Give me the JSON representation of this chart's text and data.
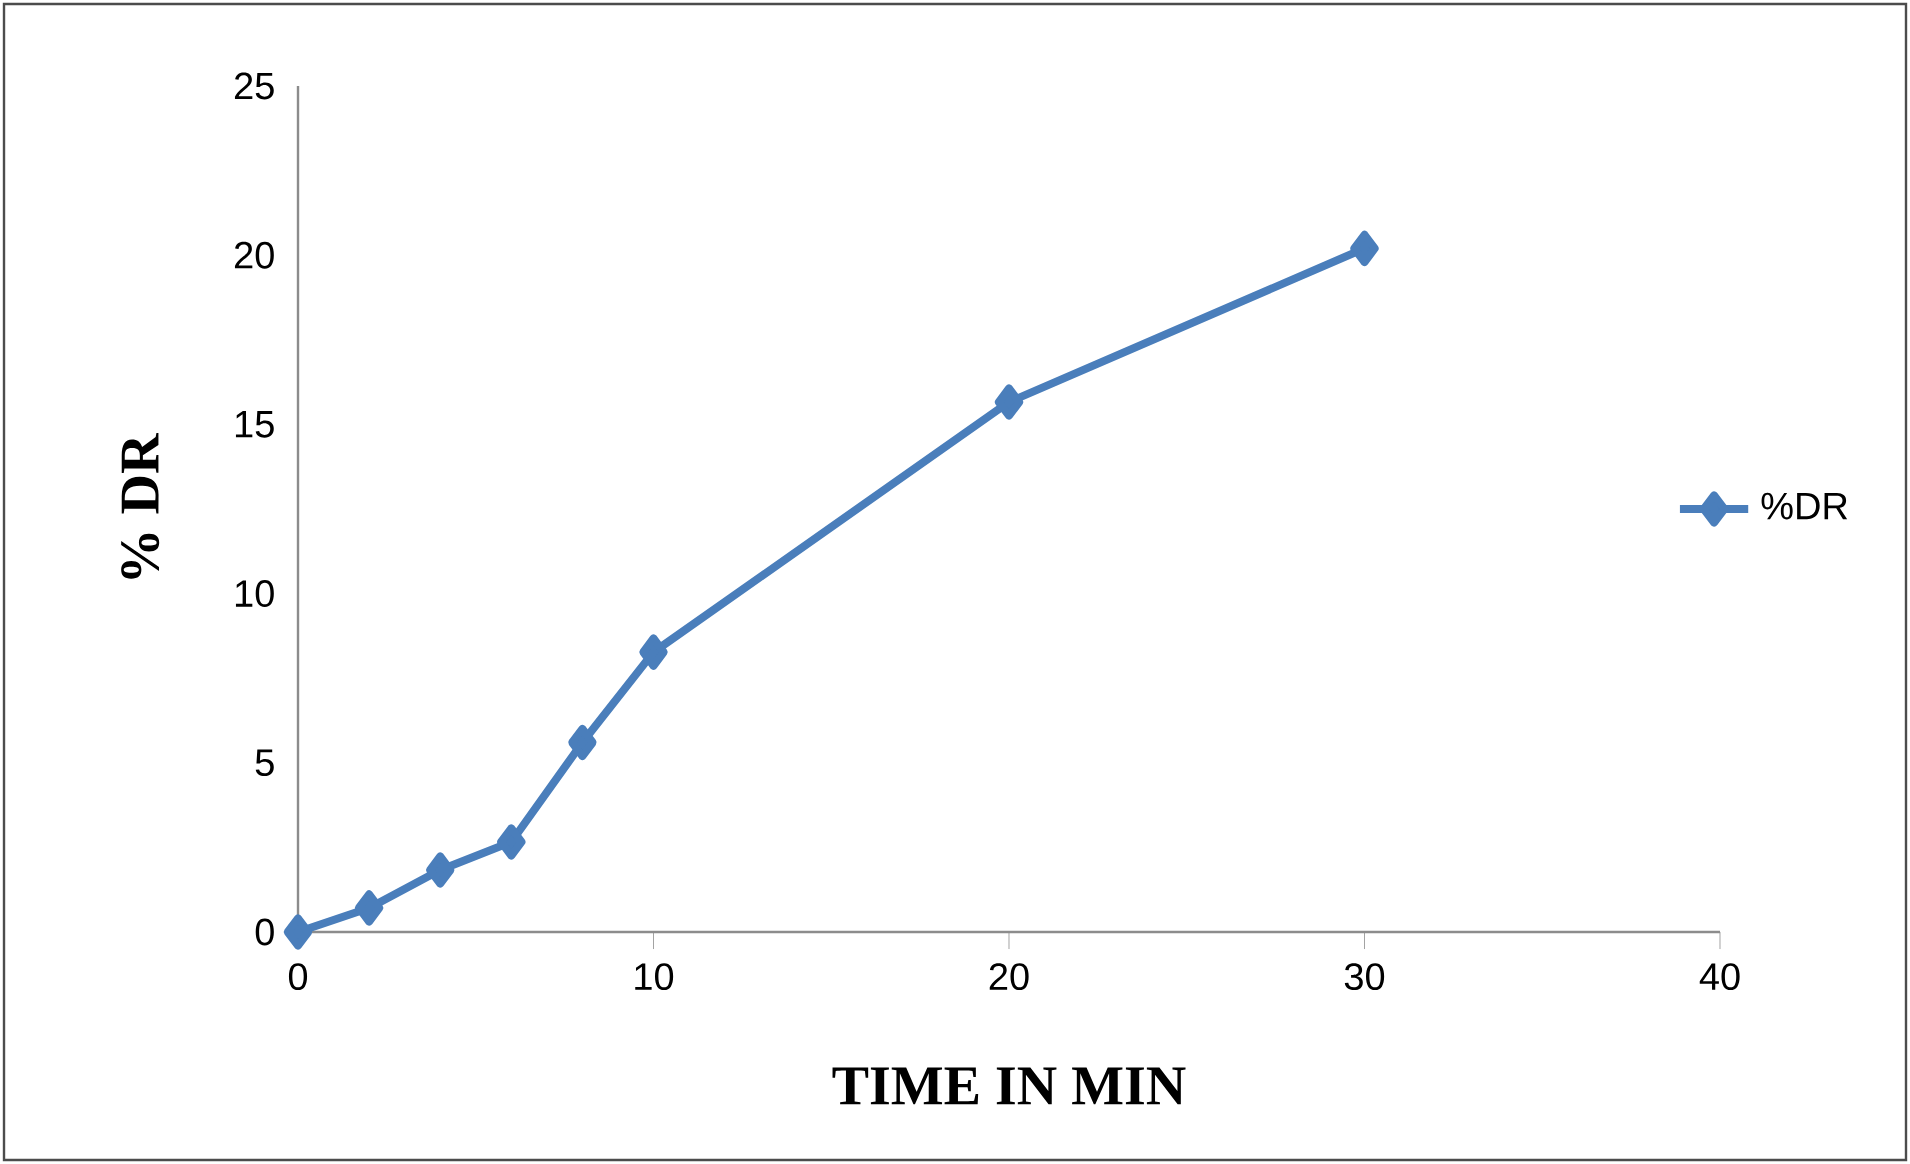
{
  "chart_data": {
    "type": "line",
    "xlabel": "TIME IN MIN",
    "ylabel": "% DR",
    "x": [
      0,
      2,
      4,
      6,
      8,
      10,
      20,
      30
    ],
    "series": [
      {
        "name": "%DR",
        "color": "#4a7ebb",
        "values": [
          0,
          0.71,
          1.83,
          2.66,
          5.6,
          8.27,
          15.66,
          20.2
        ]
      }
    ],
    "xlim": [
      0,
      40
    ],
    "ylim": [
      0,
      25
    ],
    "xticks": [
      0,
      10,
      20,
      30,
      40
    ],
    "yticks": [
      0,
      5,
      10,
      15,
      20,
      25
    ],
    "grid": false,
    "legend": "right",
    "marker": "diamond",
    "line_style": "solid"
  }
}
